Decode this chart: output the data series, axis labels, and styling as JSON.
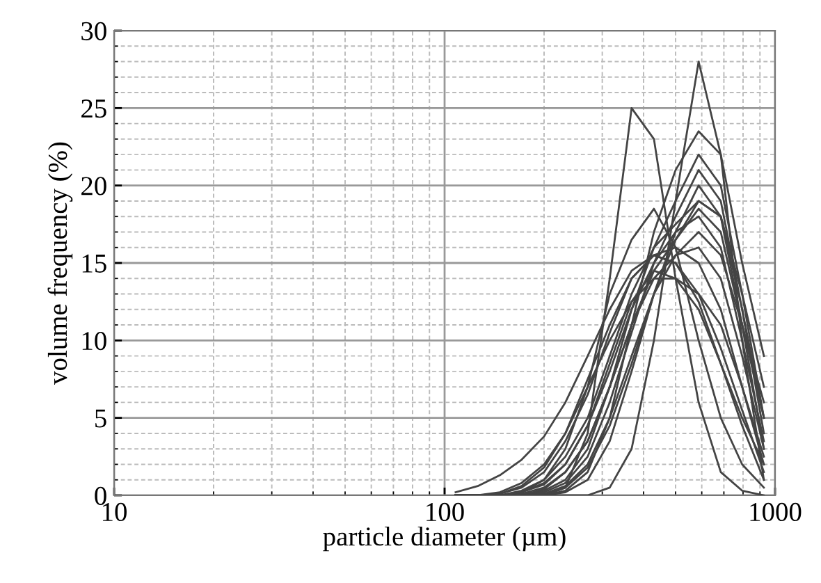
{
  "chart_data": {
    "type": "line",
    "xlabel": "particle diameter (µm)",
    "ylabel": "volume frequency (%)",
    "x": [
      108,
      126,
      147,
      171,
      200,
      232,
      271,
      316,
      368,
      430,
      500,
      587,
      685,
      795,
      925
    ],
    "xlim": [
      10,
      1000
    ],
    "xticks": [
      10,
      100,
      1000
    ],
    "ylim": [
      0,
      30
    ],
    "yticks": [
      0,
      5,
      10,
      15,
      20,
      25,
      30
    ],
    "log": "x",
    "grid": true,
    "marker": "none",
    "line_style": "solid",
    "series": [
      {
        "color": "#444444",
        "values": [
          0,
          0,
          0,
          0,
          0,
          0.5,
          4,
          14,
          25,
          23,
          14,
          6,
          1.5,
          0.3,
          0
        ]
      },
      {
        "color": "#444444",
        "values": [
          0,
          0,
          0,
          0,
          0,
          0,
          0,
          0.5,
          3,
          10,
          19,
          28,
          22,
          10,
          1
        ]
      },
      {
        "color": "#444444",
        "values": [
          0,
          0,
          0,
          0.2,
          1,
          3,
          7,
          13,
          16.5,
          18.5,
          16,
          10,
          5,
          2,
          0.5
        ]
      },
      {
        "color": "#444444",
        "values": [
          0.2,
          0.6,
          1.3,
          2.3,
          3.8,
          6,
          9,
          12,
          14.5,
          15.5,
          15,
          12.5,
          8.5,
          5,
          2
        ]
      },
      {
        "color": "#444444",
        "values": [
          0,
          0,
          0,
          0,
          0,
          0.3,
          1.5,
          5,
          11,
          17,
          21,
          23.5,
          22,
          15,
          9
        ]
      },
      {
        "color": "#444444",
        "values": [
          0,
          0,
          0,
          0,
          0.3,
          1,
          3,
          7,
          12,
          16,
          19,
          22,
          20,
          13,
          5
        ]
      },
      {
        "color": "#444444",
        "values": [
          0,
          0,
          0,
          0,
          0.2,
          0.8,
          2.5,
          6,
          10.5,
          15,
          18,
          21,
          19,
          12,
          4
        ]
      },
      {
        "color": "#444444",
        "values": [
          0,
          0,
          0,
          0.3,
          1,
          2.5,
          5,
          9,
          13,
          16,
          17.5,
          19,
          18,
          11,
          3
        ]
      },
      {
        "color": "#444444",
        "values": [
          0,
          0,
          0.2,
          0.8,
          2,
          4,
          7.5,
          11,
          14,
          15.5,
          16,
          15,
          12,
          7,
          2
        ]
      },
      {
        "color": "#444444",
        "values": [
          0,
          0,
          0,
          0.2,
          0.8,
          2,
          4.5,
          8,
          12,
          15,
          17,
          18,
          16,
          10,
          3.5
        ]
      },
      {
        "color": "#444444",
        "values": [
          0,
          0,
          0,
          0,
          0.4,
          1.5,
          3.5,
          7,
          11,
          14.5,
          16.5,
          18.5,
          17,
          11,
          6
        ]
      },
      {
        "color": "#444444",
        "values": [
          0,
          0,
          0,
          0,
          0,
          0.5,
          1.8,
          4.5,
          8.5,
          13,
          16.5,
          19,
          18,
          13,
          7
        ]
      },
      {
        "color": "#444444",
        "values": [
          0,
          0,
          0.1,
          0.5,
          1.5,
          3.5,
          6.5,
          10.5,
          14,
          15.5,
          15,
          13,
          9.5,
          5.5,
          1.5
        ]
      },
      {
        "color": "#444444",
        "values": [
          0,
          0,
          0,
          0.1,
          0.5,
          1.5,
          3.5,
          7,
          11,
          14,
          15.5,
          16,
          14,
          9,
          3
        ]
      },
      {
        "color": "#444444",
        "values": [
          0,
          0,
          0,
          0,
          0.1,
          0.6,
          2,
          5,
          9,
          13,
          15.5,
          17,
          15.5,
          11,
          5
        ]
      },
      {
        "color": "#444444",
        "values": [
          0,
          0,
          0.1,
          0.6,
          1.8,
          4,
          7,
          10,
          12.5,
          14,
          14,
          13,
          11,
          7,
          2.5
        ]
      },
      {
        "color": "#444444",
        "values": [
          0,
          0,
          0,
          0,
          0,
          0.2,
          1,
          3.5,
          8,
          13,
          17,
          20,
          18,
          12,
          5
        ]
      },
      {
        "color": "#444444",
        "values": [
          0,
          0,
          0,
          0.2,
          0.7,
          2,
          4.5,
          8.5,
          12.5,
          14.5,
          14,
          12,
          8.5,
          4.5,
          1
        ]
      }
    ]
  }
}
